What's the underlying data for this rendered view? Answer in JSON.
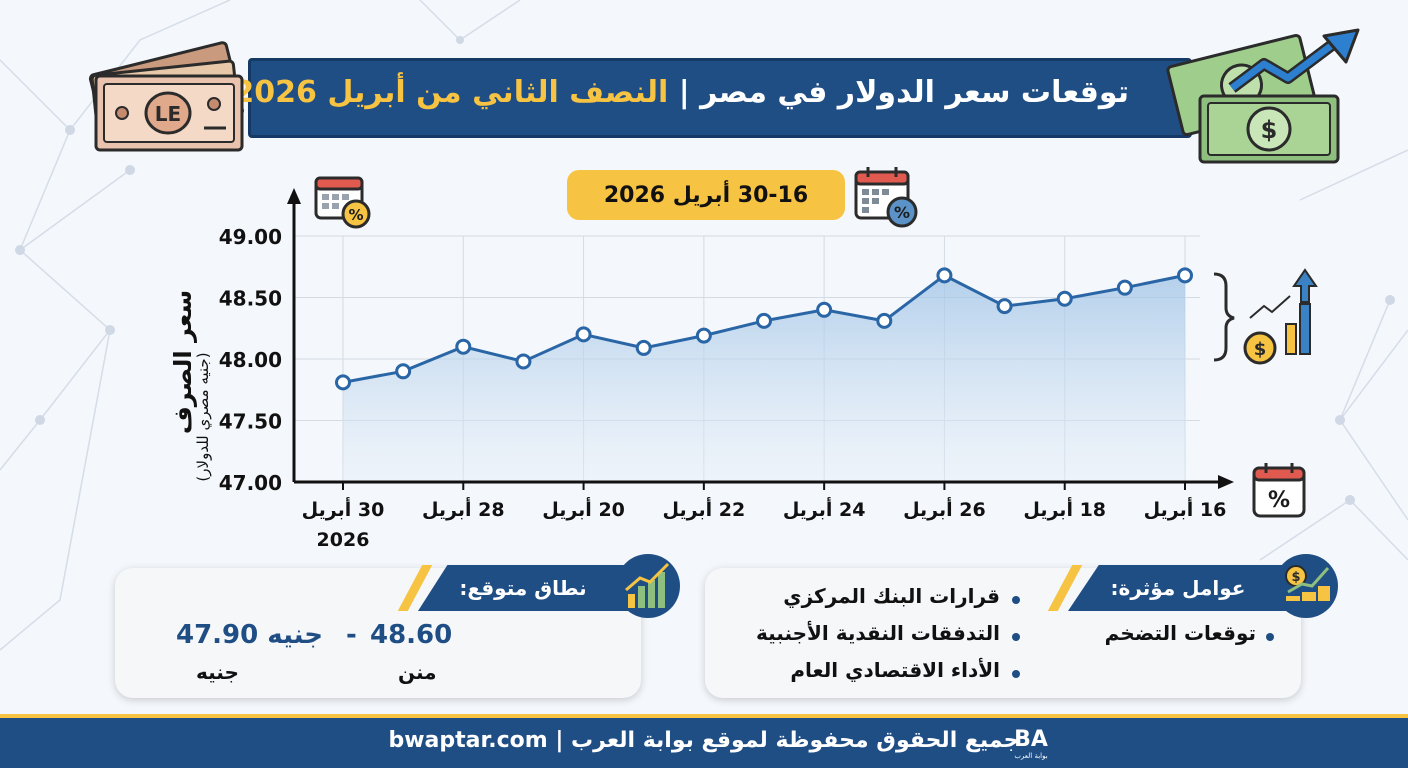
{
  "title": {
    "part1": "توقعات سعر الدولار في مصر | ",
    "part2": "النصف الثاني من أبريل 2026"
  },
  "date_range": "30-16 أبريل 2026",
  "y_axis": {
    "title": "سعر الصرف",
    "subtitle": "(جنيه مصري للدولار)"
  },
  "chart_data": {
    "type": "line",
    "title": "",
    "x_tick_labels": [
      "16 أبريل",
      "18 أبريل",
      "26 أبريل",
      "24 أبريل",
      "22 أبريل",
      "20 أبريل",
      "28 أبريل",
      "30 أبريل 2026"
    ],
    "x": [
      "16 أبريل",
      "",
      "18 أبريل",
      "",
      "26 أبريل",
      "",
      "24 أبريل",
      "",
      "22 أبريل",
      "",
      "20 أبريل",
      "",
      "28 أبريل",
      "",
      "30 أبريل 2026"
    ],
    "series": [
      {
        "values": [
          48.68,
          48.58,
          48.49,
          48.43,
          48.68,
          48.31,
          48.4,
          48.31,
          48.19,
          48.09,
          48.2,
          47.98,
          48.1,
          47.9,
          47.81
        ]
      }
    ],
    "xlabel": "",
    "ylabel": "سعر الصرف (جنيه مصري للدولار)",
    "ylim": [
      47.0,
      49.0
    ],
    "y_ticks": [
      "47.00",
      "47.50",
      "48.00",
      "48.50",
      "49.00"
    ],
    "grid": true,
    "x_direction": "right-to-left",
    "colors": {
      "line": "#2a66a6",
      "fill": "#bcd6ee"
    }
  },
  "range_card": {
    "label": "نطاق متوقع:",
    "value_high": "48.60",
    "dash": "-",
    "value_low": "47.90 جنيه",
    "sub_left": "منن",
    "sub_right": "جنيه"
  },
  "factors_card": {
    "label": "عوامل مؤثرة:",
    "items": [
      "قرارات البنك المركزي",
      "التدفقات النقدية الأجنبية",
      "الأداء الاقتصادي العام",
      "توقعات التضخم"
    ]
  },
  "footer": {
    "text": "جميع الحقوق محفوظة لموقع بوابة العرب | bwaptar.com",
    "logo_mark": "BA",
    "logo_caption": "بوابة العرب"
  },
  "icons": {
    "banknote_text": "LE",
    "dollar_sign": "$",
    "percent": "%"
  },
  "colors": {
    "navy": "#1f4e85",
    "gold": "#f6c343",
    "green_note": "#8fbf7f"
  }
}
